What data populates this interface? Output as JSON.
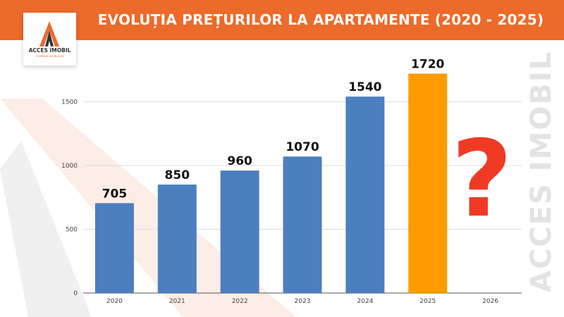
{
  "header": {
    "title": "EVOLUȚIA PREȚURILOR LA APARTAMENTE (2020 - 2025)"
  },
  "logo": {
    "brand": "ACCES IMOBIL",
    "tagline": "COMPANIE IMOBILIARA"
  },
  "watermark": "ACCES IMOBIL",
  "question_mark": "?",
  "colors": {
    "header": "#ec6a2a",
    "bar": "#4c7fbf",
    "highlight": "#ff9a00",
    "question": "#ef3b24"
  },
  "chart_data": {
    "type": "bar",
    "categories": [
      "2020",
      "2021",
      "2022",
      "2023",
      "2024",
      "2025",
      "2026"
    ],
    "values": [
      705,
      850,
      960,
      1070,
      1540,
      1720,
      null
    ],
    "data_labels": [
      "705",
      "850",
      "960",
      "1070",
      "1540",
      "1720",
      ""
    ],
    "highlight_category": "2025",
    "yticks": [
      0,
      500,
      1000,
      1500
    ],
    "ylim": [
      0,
      1800
    ],
    "grid": true,
    "title": "EVOLUȚIA PREȚURILOR LA APARTAMENTE (2020 - 2025)",
    "xlabel": "",
    "ylabel": ""
  }
}
